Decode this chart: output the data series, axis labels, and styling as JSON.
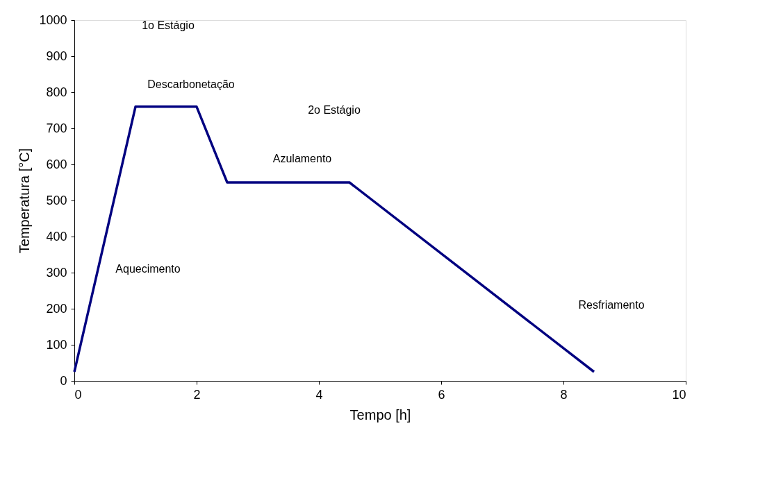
{
  "chart_data": {
    "type": "line",
    "xlabel": "Tempo [h]",
    "ylabel": "Temperatura [°C]",
    "x": [
      0,
      1,
      2,
      2.5,
      4.5,
      8.5
    ],
    "series": [
      {
        "color": "#000080",
        "values": [
          25,
          760,
          760,
          550,
          550,
          25
        ]
      }
    ],
    "xlim": [
      0,
      10
    ],
    "xticks": [
      0,
      2,
      4,
      6,
      8,
      10
    ],
    "ylim": [
      0,
      1000
    ],
    "yticks": [
      0,
      100,
      200,
      300,
      400,
      500,
      600,
      700,
      800,
      900,
      1000
    ],
    "grid": false,
    "marker": "none",
    "line_style": "solid",
    "annotations": [
      "1o Estágio",
      "Descarbonetação",
      "2o Estágio",
      "Azulamento",
      "Aquecimento",
      "Resfriamento"
    ]
  }
}
